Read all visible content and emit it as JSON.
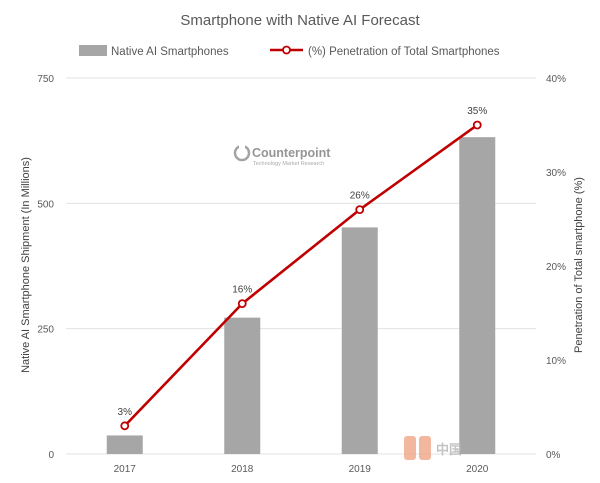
{
  "chart_data": {
    "type": "bar",
    "title": "Smartphone with Native AI Forecast",
    "categories": [
      "2017",
      "2018",
      "2019",
      "2020"
    ],
    "series": [
      {
        "name": "Native AI Smartphones",
        "type": "bar",
        "axis": "left",
        "values": [
          37,
          272,
          452,
          632
        ],
        "color": "#a6a6a6"
      },
      {
        "name": "(%) Penetration of Total Smartphones",
        "type": "line",
        "axis": "right",
        "values": [
          3,
          16,
          26,
          35
        ],
        "data_labels": [
          "3%",
          "16%",
          "26%",
          "35%"
        ],
        "color": "#c00000"
      }
    ],
    "ylabel": "Native AI Smartphone Shipment (In Millions)",
    "ylim": [
      0,
      750
    ],
    "yticks": [
      "0",
      "250",
      "500",
      "750"
    ],
    "y2label": "Penetration of Total smartphone (%)",
    "y2lim": [
      0,
      40
    ],
    "y2ticks": [
      "0%",
      "10%",
      "20%",
      "30%",
      "40%"
    ],
    "grid": true,
    "legend": "top"
  },
  "watermark": {
    "brand": "Counterpoint",
    "tagline": "Technology Market Research",
    "corner_mark": "中国"
  }
}
